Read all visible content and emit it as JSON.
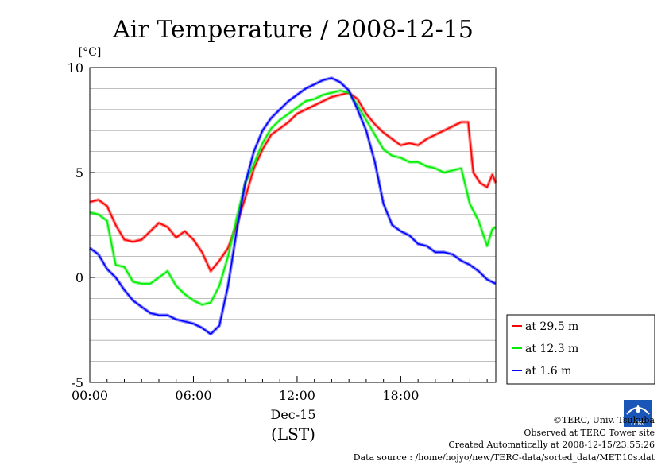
{
  "chart_data": {
    "type": "line",
    "title": "Air Temperature / 2008-12-15",
    "ylabel": "[°C]",
    "xlabel": "(LST)",
    "date_label": "Dec-15",
    "xlim": [
      0,
      23.5
    ],
    "ylim": [
      -5,
      10
    ],
    "y_ticks": [
      10,
      5,
      0,
      -5
    ],
    "x_ticks": [
      {
        "hour": 0,
        "label": "00:00"
      },
      {
        "hour": 6,
        "label": "06:00"
      },
      {
        "hour": 12,
        "label": "12:00"
      },
      {
        "hour": 18,
        "label": "18:00"
      }
    ],
    "grid": true,
    "legend_position": "bottom-right",
    "series": [
      {
        "name": "at 29.5 m",
        "color": "#ff0000",
        "points": [
          [
            0,
            3.6
          ],
          [
            0.5,
            3.7
          ],
          [
            1,
            3.4
          ],
          [
            1.5,
            2.5
          ],
          [
            2,
            1.8
          ],
          [
            2.5,
            1.7
          ],
          [
            3,
            1.8
          ],
          [
            3.5,
            2.2
          ],
          [
            4,
            2.6
          ],
          [
            4.5,
            2.4
          ],
          [
            5,
            1.9
          ],
          [
            5.5,
            2.2
          ],
          [
            6,
            1.8
          ],
          [
            6.5,
            1.2
          ],
          [
            7,
            0.3
          ],
          [
            7.5,
            0.8
          ],
          [
            8,
            1.4
          ],
          [
            8.5,
            2.5
          ],
          [
            9,
            3.8
          ],
          [
            9.5,
            5.2
          ],
          [
            10,
            6.1
          ],
          [
            10.5,
            6.8
          ],
          [
            11,
            7.1
          ],
          [
            11.5,
            7.4
          ],
          [
            12,
            7.8
          ],
          [
            12.5,
            8.0
          ],
          [
            13,
            8.2
          ],
          [
            13.5,
            8.4
          ],
          [
            14,
            8.6
          ],
          [
            14.5,
            8.7
          ],
          [
            15,
            8.8
          ],
          [
            15.5,
            8.5
          ],
          [
            16,
            7.8
          ],
          [
            16.5,
            7.3
          ],
          [
            17,
            6.9
          ],
          [
            17.5,
            6.6
          ],
          [
            18,
            6.3
          ],
          [
            18.5,
            6.4
          ],
          [
            19,
            6.3
          ],
          [
            19.5,
            6.6
          ],
          [
            20,
            6.8
          ],
          [
            20.5,
            7.0
          ],
          [
            21,
            7.2
          ],
          [
            21.5,
            7.4
          ],
          [
            21.9,
            7.4
          ],
          [
            22.2,
            5.0
          ],
          [
            22.6,
            4.5
          ],
          [
            23,
            4.3
          ],
          [
            23.3,
            4.9
          ],
          [
            23.5,
            4.5
          ]
        ]
      },
      {
        "name": "at 12.3 m",
        "color": "#00ee00",
        "points": [
          [
            0,
            3.1
          ],
          [
            0.5,
            3.0
          ],
          [
            1,
            2.7
          ],
          [
            1.5,
            0.6
          ],
          [
            2,
            0.5
          ],
          [
            2.5,
            -0.2
          ],
          [
            3,
            -0.3
          ],
          [
            3.5,
            -0.3
          ],
          [
            4,
            0.0
          ],
          [
            4.5,
            0.3
          ],
          [
            5,
            -0.4
          ],
          [
            5.5,
            -0.8
          ],
          [
            6,
            -1.1
          ],
          [
            6.5,
            -1.3
          ],
          [
            7,
            -1.2
          ],
          [
            7.5,
            -0.4
          ],
          [
            8,
            1.0
          ],
          [
            8.5,
            2.8
          ],
          [
            9,
            4.5
          ],
          [
            9.5,
            5.4
          ],
          [
            10,
            6.4
          ],
          [
            10.5,
            7.1
          ],
          [
            11,
            7.5
          ],
          [
            11.5,
            7.8
          ],
          [
            12,
            8.1
          ],
          [
            12.5,
            8.4
          ],
          [
            13,
            8.5
          ],
          [
            13.5,
            8.7
          ],
          [
            14,
            8.8
          ],
          [
            14.5,
            8.9
          ],
          [
            15,
            8.8
          ],
          [
            15.5,
            8.2
          ],
          [
            16,
            7.5
          ],
          [
            16.5,
            6.8
          ],
          [
            17,
            6.1
          ],
          [
            17.5,
            5.8
          ],
          [
            18,
            5.7
          ],
          [
            18.5,
            5.5
          ],
          [
            19,
            5.5
          ],
          [
            19.5,
            5.3
          ],
          [
            20,
            5.2
          ],
          [
            20.5,
            5.0
          ],
          [
            21,
            5.1
          ],
          [
            21.5,
            5.2
          ],
          [
            22,
            3.5
          ],
          [
            22.5,
            2.7
          ],
          [
            23,
            1.5
          ],
          [
            23.3,
            2.3
          ],
          [
            23.5,
            2.4
          ]
        ]
      },
      {
        "name": "at 1.6 m",
        "color": "#0000ff",
        "points": [
          [
            0,
            1.4
          ],
          [
            0.5,
            1.1
          ],
          [
            1,
            0.4
          ],
          [
            1.5,
            0.0
          ],
          [
            2,
            -0.6
          ],
          [
            2.5,
            -1.1
          ],
          [
            3,
            -1.4
          ],
          [
            3.5,
            -1.7
          ],
          [
            4,
            -1.8
          ],
          [
            4.5,
            -1.8
          ],
          [
            5,
            -2.0
          ],
          [
            5.5,
            -2.1
          ],
          [
            6,
            -2.2
          ],
          [
            6.5,
            -2.4
          ],
          [
            7,
            -2.7
          ],
          [
            7.5,
            -2.3
          ],
          [
            8,
            -0.4
          ],
          [
            8.5,
            2.2
          ],
          [
            9,
            4.5
          ],
          [
            9.5,
            6.0
          ],
          [
            10,
            7.0
          ],
          [
            10.5,
            7.6
          ],
          [
            11,
            8.0
          ],
          [
            11.5,
            8.4
          ],
          [
            12,
            8.7
          ],
          [
            12.5,
            9.0
          ],
          [
            13,
            9.2
          ],
          [
            13.5,
            9.4
          ],
          [
            14,
            9.5
          ],
          [
            14.5,
            9.3
          ],
          [
            15,
            8.9
          ],
          [
            15.5,
            8.0
          ],
          [
            16,
            7.0
          ],
          [
            16.5,
            5.5
          ],
          [
            17,
            3.5
          ],
          [
            17.5,
            2.5
          ],
          [
            18,
            2.2
          ],
          [
            18.5,
            2.0
          ],
          [
            19,
            1.6
          ],
          [
            19.5,
            1.5
          ],
          [
            20,
            1.2
          ],
          [
            20.5,
            1.2
          ],
          [
            21,
            1.1
          ],
          [
            21.5,
            0.8
          ],
          [
            22,
            0.6
          ],
          [
            22.5,
            0.3
          ],
          [
            23,
            -0.1
          ],
          [
            23.5,
            -0.3
          ]
        ]
      }
    ]
  },
  "credits": {
    "line1": "©TERC, Univ. Tsukuba",
    "line2": "Observed at TERC Tower site",
    "line3": "Created Automatically at 2008-12-15/23:55:26",
    "line4": "Data source : /home/hojyo/new/TERC-data/sorted_data/MET.10s.dat"
  },
  "logo": {
    "text": "TERC",
    "icon": "terc-logo-icon"
  }
}
